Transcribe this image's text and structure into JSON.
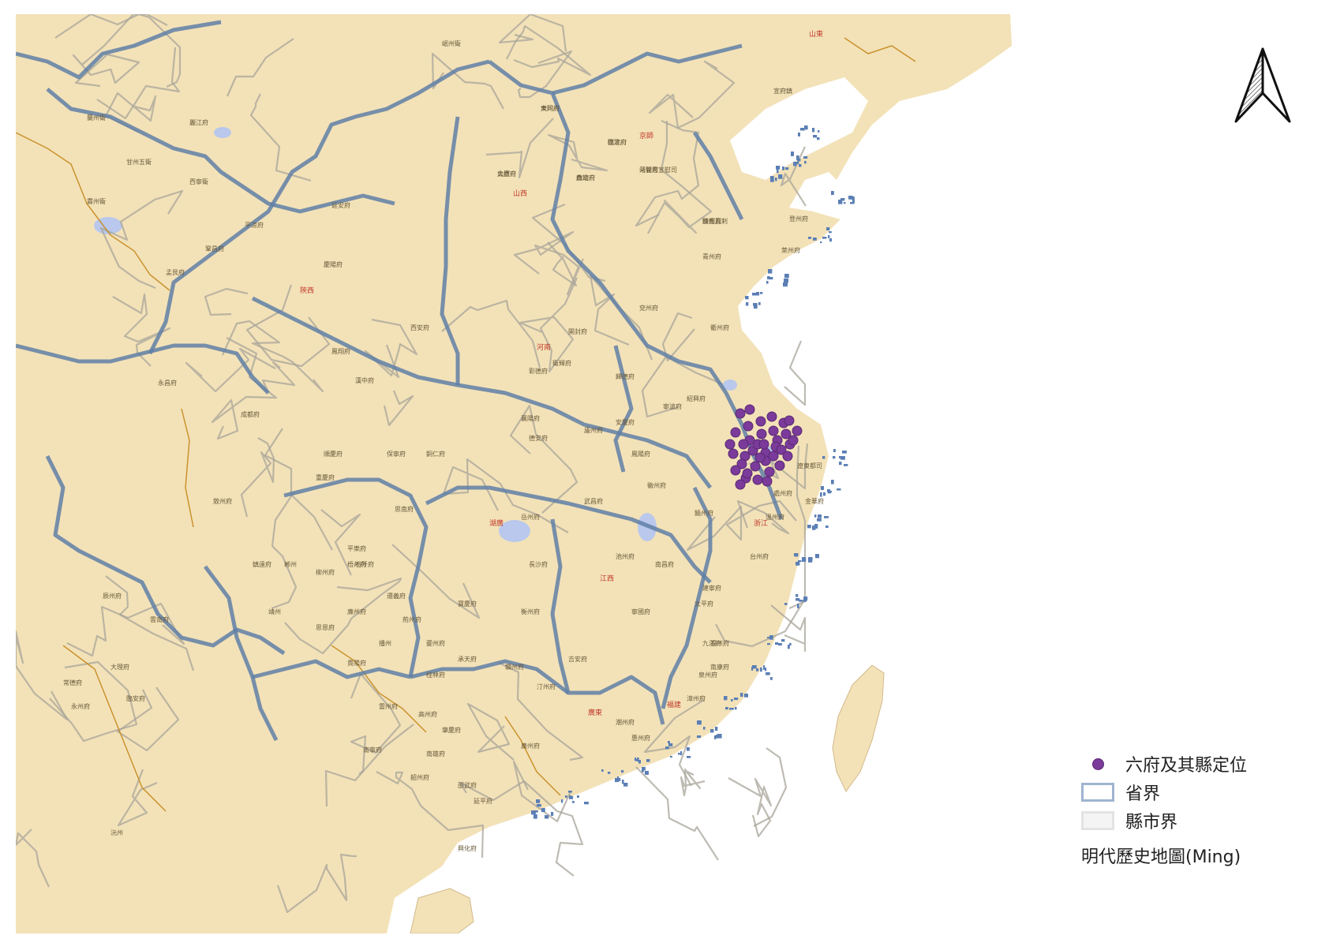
{
  "map": {
    "colors": {
      "land": "#f3e2b8",
      "sea": "#ffffff",
      "province_border": "#5f7fa6",
      "county_border": "#a8a49a",
      "lake": "#b9c8ec",
      "coast_islands": "#5b7fb5",
      "point": "#7b3b9a"
    },
    "province_labels": [
      "山東",
      "山西",
      "河南",
      "陝西",
      "湖廣",
      "江西",
      "浙江",
      "福建",
      "廣東",
      "京師"
    ],
    "place_labels": [
      "大同府",
      "太原府",
      "真定府",
      "保定府",
      "河間府",
      "濟南府",
      "開封府",
      "西安府",
      "鳳翔府",
      "漢中府",
      "襄陽府",
      "德安府",
      "武昌府",
      "岳州府",
      "長沙府",
      "衡州府",
      "寶慶府",
      "南昌府",
      "饒州府",
      "建寧府",
      "福州府",
      "泉州府",
      "漳州府",
      "潮州府",
      "惠州府",
      "廣州府",
      "肇慶府",
      "桂林府",
      "南寧府",
      "貴陽府",
      "成都府",
      "重慶府",
      "順慶府",
      "保寧府",
      "敘州府",
      "雲南府",
      "大理府",
      "臨安府",
      "登州府",
      "萊州府",
      "青州府",
      "兗州府",
      "歸德府",
      "衛輝府",
      "彰德府",
      "延安府",
      "慶陽府",
      "平涼府",
      "鞏昌府",
      "蘭州衛",
      "甘州五衛",
      "肅州衛",
      "西寧衛",
      "岷州衛",
      "宣府鎮",
      "遼東都司",
      "台州府",
      "溫州府",
      "處州府",
      "金華府",
      "衢州府",
      "紹興府",
      "寧波府",
      "安慶府",
      "廬州府",
      "鳳陽府",
      "徽州府",
      "池州府",
      "寧國府",
      "太平府",
      "九江府",
      "南康府",
      "吉安府",
      "贛州府",
      "汀州府",
      "延平府",
      "邵武府",
      "興化府",
      "韶州府",
      "南雄府",
      "高州府",
      "雷州府",
      "廉州府",
      "梧州府",
      "柳州府",
      "平樂府",
      "思恩府",
      "鎮遠府",
      "思南府",
      "銅仁府",
      "石阡府",
      "遵義府",
      "播州",
      "夔州府",
      "荊州府",
      "承天府",
      "沅州",
      "辰州府",
      "常德府",
      "永州府",
      "郴州",
      "靖州",
      "孟艮府",
      "永昌府",
      "麗江府",
      "東川府",
      "烏撒府",
      "曲靖府",
      "臨洮府",
      "朵甘思宣慰司",
      "韃靼瓦剌"
    ],
    "points": {
      "legend_label": "六府及其縣定位",
      "count": 40
    }
  },
  "north_arrow": {
    "icon": "north-arrow-icon"
  },
  "legend": {
    "items": [
      {
        "label": "六府及其縣定位",
        "swatch": "purple-dot"
      },
      {
        "label": "省界",
        "swatch": "province-border"
      },
      {
        "label": "縣市界",
        "swatch": "county-border"
      }
    ],
    "title": "明代歷史地圖(Ming)"
  }
}
